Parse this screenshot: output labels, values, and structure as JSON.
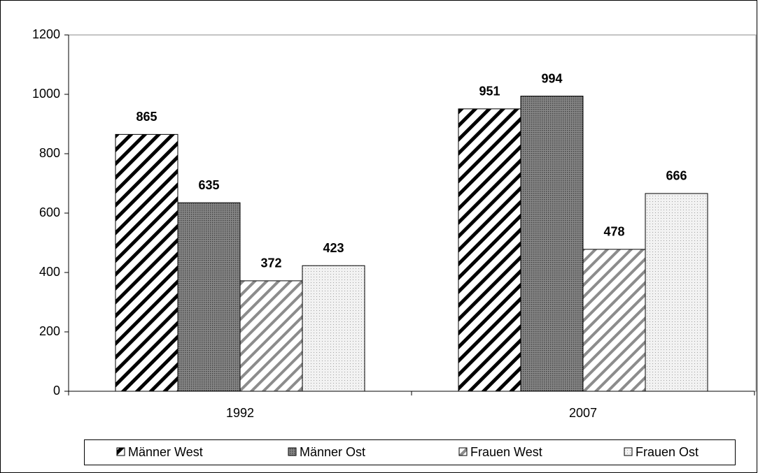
{
  "chart_data": {
    "type": "bar",
    "categories": [
      "1992",
      "2007"
    ],
    "series": [
      {
        "name": "Männer West",
        "color": "#000000",
        "pattern": "diagonal-wide",
        "values": [
          865,
          951
        ]
      },
      {
        "name": "Männer Ost",
        "color": "#444444",
        "pattern": "dots-dense",
        "values": [
          635,
          994
        ]
      },
      {
        "name": "Frauen West",
        "color": "#8c8c8c",
        "pattern": "diagonal-light",
        "values": [
          372,
          478
        ]
      },
      {
        "name": "Frauen Ost",
        "color": "#a0a0a0",
        "pattern": "dots-light",
        "values": [
          423,
          666
        ]
      }
    ],
    "ylim": [
      0,
      1200
    ],
    "yticks": [
      0,
      200,
      400,
      600,
      800,
      1000,
      1200
    ],
    "grid": false,
    "legend": "bottom"
  }
}
